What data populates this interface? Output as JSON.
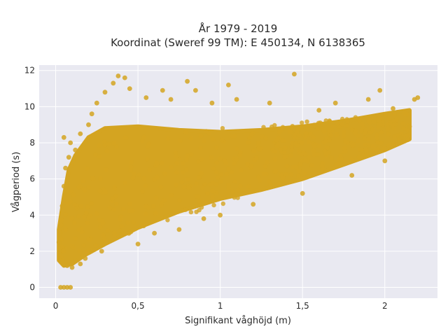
{
  "chart_data": {
    "type": "scatter",
    "title_line1": "År 1979 - 2019",
    "title_line2": "Koordinat (Sweref 99 TM): E 450134, N 6138365",
    "xlabel": "Signifikant våghöjd (m)",
    "ylabel": "Vågperiod (s)",
    "xlim": [
      -0.1,
      2.32
    ],
    "ylim": [
      -0.6,
      12.3
    ],
    "x_ticks": [
      0,
      0.5,
      1,
      1.5,
      2
    ],
    "x_tick_labels": [
      "0",
      "0,5",
      "1",
      "1,5",
      "2"
    ],
    "y_ticks": [
      0,
      2,
      4,
      6,
      8,
      10,
      12
    ],
    "y_tick_labels": [
      "0",
      "2",
      "4",
      "6",
      "8",
      "10",
      "12"
    ],
    "grid": true,
    "marker_color": "#d4a421",
    "plot_background": "#e9e9f1",
    "points": [
      [
        0.03,
        0.0
      ],
      [
        0.05,
        0.0
      ],
      [
        0.07,
        0.0
      ],
      [
        0.09,
        0.0
      ],
      [
        0.02,
        2.5
      ],
      [
        0.03,
        3.0
      ],
      [
        0.04,
        4.5
      ],
      [
        0.05,
        5.6
      ],
      [
        0.05,
        8.3
      ],
      [
        0.06,
        6.6
      ],
      [
        0.07,
        1.2
      ],
      [
        0.08,
        7.2
      ],
      [
        0.09,
        8.0
      ],
      [
        0.1,
        1.1
      ],
      [
        0.12,
        1.5
      ],
      [
        0.12,
        7.6
      ],
      [
        0.15,
        1.3
      ],
      [
        0.15,
        8.5
      ],
      [
        0.18,
        1.6
      ],
      [
        0.2,
        9.0
      ],
      [
        0.22,
        9.6
      ],
      [
        0.25,
        10.2
      ],
      [
        0.28,
        2.0
      ],
      [
        0.3,
        10.8
      ],
      [
        0.35,
        11.3
      ],
      [
        0.38,
        11.7
      ],
      [
        0.42,
        11.6
      ],
      [
        0.45,
        11.0
      ],
      [
        0.5,
        2.4
      ],
      [
        0.55,
        10.5
      ],
      [
        0.6,
        3.0
      ],
      [
        0.65,
        10.9
      ],
      [
        0.7,
        10.4
      ],
      [
        0.75,
        3.2
      ],
      [
        0.8,
        11.4
      ],
      [
        0.85,
        10.9
      ],
      [
        0.9,
        3.8
      ],
      [
        0.95,
        10.2
      ],
      [
        1.0,
        4.0
      ],
      [
        1.05,
        11.2
      ],
      [
        1.1,
        10.4
      ],
      [
        1.2,
        4.6
      ],
      [
        1.3,
        10.2
      ],
      [
        1.45,
        11.8
      ],
      [
        1.5,
        5.2
      ],
      [
        1.6,
        9.8
      ],
      [
        1.7,
        10.2
      ],
      [
        1.8,
        6.2
      ],
      [
        1.9,
        10.4
      ],
      [
        1.97,
        10.9
      ],
      [
        2.0,
        7.0
      ],
      [
        2.05,
        9.9
      ],
      [
        2.1,
        8.3
      ],
      [
        2.15,
        8.9
      ],
      [
        2.18,
        10.4
      ],
      [
        2.2,
        10.5
      ]
    ],
    "density_region_note_free": true
  }
}
